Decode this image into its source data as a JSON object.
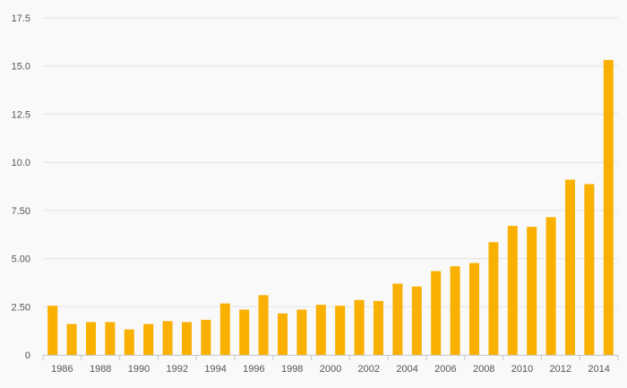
{
  "chart_data": {
    "type": "bar",
    "categories": [
      "1986",
      "1987",
      "1988",
      "1989",
      "1990",
      "1991",
      "1992",
      "1993",
      "1994",
      "1995",
      "1996",
      "1997",
      "1998",
      "1999",
      "2000",
      "2001",
      "2002",
      "2003",
      "2004",
      "2005",
      "2006",
      "2007",
      "2008",
      "2009",
      "2010",
      "2011",
      "2012",
      "2013",
      "2014",
      "2015"
    ],
    "values": [
      2.55,
      1.6,
      1.7,
      1.7,
      1.32,
      1.6,
      1.75,
      1.7,
      1.82,
      2.67,
      2.35,
      3.1,
      2.15,
      2.35,
      2.6,
      2.55,
      2.85,
      2.8,
      3.7,
      3.55,
      4.35,
      4.6,
      4.77,
      5.85,
      6.7,
      6.65,
      7.15,
      9.1,
      8.87,
      15.32
    ],
    "x_tick_labels": [
      "1986",
      "1988",
      "1990",
      "1992",
      "1994",
      "1996",
      "1998",
      "2000",
      "2002",
      "2004",
      "2006",
      "2008",
      "2010",
      "2012",
      "2014"
    ],
    "y_ticks": [
      0,
      2.5,
      5,
      7.5,
      10,
      12.5,
      15,
      17.5
    ],
    "y_tick_labels": [
      "0",
      "2.50",
      "5.00",
      "7.50",
      "10.0",
      "12.5",
      "15.0",
      "17.5"
    ],
    "ylim": [
      0,
      17.5
    ],
    "grid": true,
    "title": "",
    "xlabel": "",
    "ylabel": "",
    "colors": {
      "bar": "#f9b000",
      "grid": "#e3e3e3",
      "axis": "#c8c8c8",
      "label": "#555555",
      "background": "#f9f9f9"
    }
  }
}
